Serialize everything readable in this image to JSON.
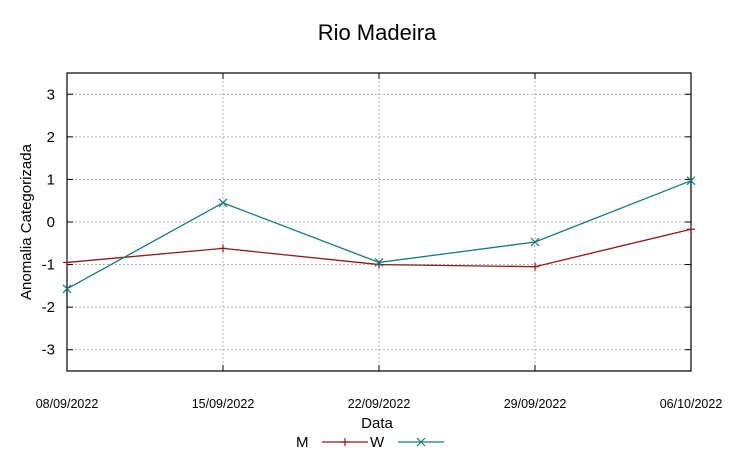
{
  "chart_data": {
    "type": "line",
    "title": "Rio Madeira",
    "xlabel": "Data",
    "ylabel": "Anomalia Categorizada",
    "categories": [
      "08/09/2022",
      "15/09/2022",
      "22/09/2022",
      "29/09/2022",
      "06/10/2022"
    ],
    "y_ticks": [
      "3",
      "2",
      "1",
      "0",
      "-1",
      "-2",
      "-3"
    ],
    "ylim": [
      -3.5,
      3.5
    ],
    "grid": true,
    "legend_position": "bottom",
    "series": [
      {
        "name": "M",
        "values": [
          -0.95,
          -0.62,
          -1.0,
          -1.05,
          -0.17
        ],
        "color": "#8b1a1a",
        "marker": "plus"
      },
      {
        "name": "W",
        "values": [
          -1.57,
          0.45,
          -0.95,
          -0.47,
          0.97
        ],
        "color": "#1a7a7a",
        "marker": "cross"
      }
    ]
  }
}
